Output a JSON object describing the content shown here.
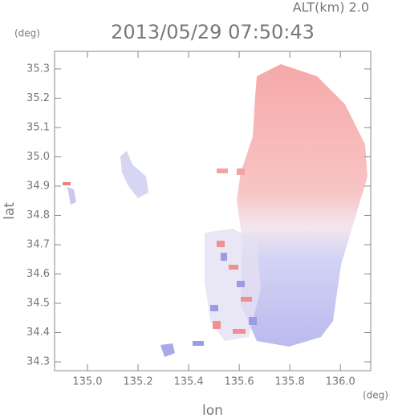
{
  "chart_data": {
    "type": "map",
    "header": "ALT(km) 2.0",
    "title": "2013/05/29 07:50:43",
    "y_unit": "(deg)",
    "x_unit": "(deg)",
    "y_label": "lat",
    "x_label": "lon",
    "xlim": [
      134.87,
      136.12
    ],
    "ylim": [
      34.27,
      35.36
    ],
    "xticks": [
      {
        "value": 135,
        "label": "135.0"
      },
      135.2,
      135.4,
      135.6,
      135.8,
      {
        "value": 136,
        "label": "136.0"
      }
    ],
    "yticks": [
      34.3,
      34.4,
      34.5,
      34.6,
      34.7,
      34.8,
      34.9,
      {
        "value": 35,
        "label": "35.0"
      },
      35.1,
      35.2,
      35.3
    ]
  }
}
